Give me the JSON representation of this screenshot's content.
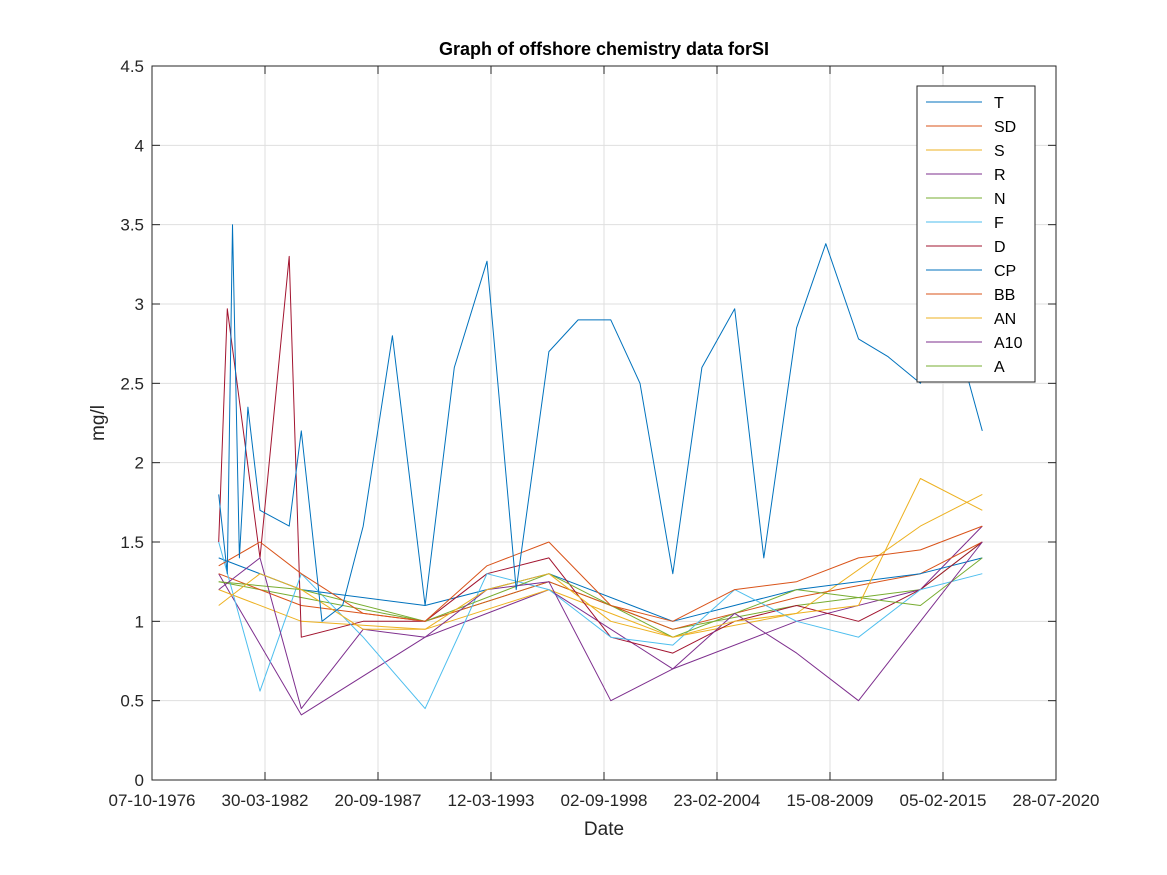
{
  "chart_data": {
    "type": "line",
    "title": "Graph of offshore chemistry data forSI",
    "xlabel": "Date",
    "ylabel": "mg/l",
    "xlim": [
      "07-10-1976",
      "28-07-2020"
    ],
    "ylim": [
      0,
      4.5
    ],
    "x_ticks": [
      "07-10-1976",
      "30-03-1982",
      "20-09-1987",
      "12-03-1993",
      "02-09-1998",
      "23-02-2004",
      "15-08-2009",
      "05-02-2015",
      "28-07-2020"
    ],
    "y_ticks": [
      "0",
      "0.5",
      "1",
      "1.5",
      "2",
      "2.5",
      "3",
      "3.5",
      "4",
      "4.5"
    ],
    "grid": true,
    "legend_position": "top-right",
    "series": [
      {
        "name": "T",
        "color": "#0072BD",
        "x": [
          "01-01-1980",
          "01-06-1980",
          "01-09-1980",
          "01-01-1981",
          "01-06-1981",
          "01-01-1982",
          "01-06-1983",
          "01-01-1984",
          "01-01-1985",
          "01-01-1986",
          "01-01-1987",
          "01-06-1988",
          "01-01-1990",
          "01-06-1991",
          "01-01-1993",
          "01-06-1994",
          "01-01-1996",
          "01-06-1997",
          "01-01-1999",
          "01-06-2000",
          "01-01-2002",
          "01-06-2003",
          "01-01-2005",
          "01-06-2006",
          "01-01-2008",
          "01-06-2009",
          "01-01-2011",
          "01-06-2012",
          "01-01-2014",
          "01-06-2015",
          "01-01-2017"
        ],
        "values": [
          1.8,
          1.3,
          3.5,
          1.4,
          2.35,
          1.7,
          1.6,
          2.2,
          1.0,
          1.1,
          1.6,
          2.8,
          1.1,
          2.6,
          3.27,
          1.2,
          2.7,
          2.9,
          2.9,
          2.5,
          1.3,
          2.6,
          2.97,
          1.4,
          2.85,
          3.38,
          2.78,
          2.67,
          2.5,
          2.95,
          2.2
        ]
      },
      {
        "name": "SD",
        "color": "#D95319",
        "x": [
          "01-01-1980",
          "01-01-1982",
          "01-01-1984",
          "01-01-1987",
          "01-01-1990",
          "01-01-1993",
          "01-01-1996",
          "01-01-1999",
          "01-01-2002",
          "01-01-2005",
          "01-01-2008",
          "01-01-2011",
          "01-01-2014",
          "01-01-2017"
        ],
        "values": [
          1.35,
          1.5,
          1.3,
          1.05,
          1.0,
          1.35,
          1.5,
          1.1,
          1.0,
          1.2,
          1.25,
          1.4,
          1.45,
          1.6
        ]
      },
      {
        "name": "S",
        "color": "#EDB120",
        "x": [
          "01-01-1980",
          "01-01-1982",
          "01-01-1984",
          "01-01-1987",
          "01-01-1990",
          "01-01-1993",
          "01-01-1996",
          "01-01-1999",
          "01-01-2002",
          "01-01-2005",
          "01-01-2008",
          "01-01-2011",
          "01-01-2014",
          "01-01-2017"
        ],
        "values": [
          1.1,
          1.3,
          1.2,
          0.95,
          0.95,
          1.2,
          1.3,
          1.0,
          0.9,
          1.0,
          1.05,
          1.1,
          1.9,
          1.7
        ]
      },
      {
        "name": "R",
        "color": "#7E2F8E",
        "x": [
          "01-01-1980",
          "01-01-1982",
          "01-01-1984",
          "01-01-1987",
          "01-01-1990",
          "01-01-1993",
          "01-01-1996",
          "01-01-1999",
          "01-01-2002",
          "01-01-2005",
          "01-01-2008",
          "01-01-2011",
          "01-01-2014",
          "01-01-2017"
        ],
        "values": [
          1.2,
          1.4,
          0.45,
          0.95,
          0.9,
          1.2,
          1.25,
          0.5,
          0.7,
          1.05,
          0.8,
          0.5,
          1.0,
          1.5
        ]
      },
      {
        "name": "N",
        "color": "#77AC30",
        "x": [
          "01-01-1980",
          "01-01-1984",
          "01-01-1990",
          "01-01-1996",
          "01-01-2002",
          "01-01-2008",
          "01-01-2014",
          "01-01-2017"
        ],
        "values": [
          1.25,
          1.2,
          1.0,
          1.3,
          0.9,
          1.2,
          1.1,
          1.4
        ]
      },
      {
        "name": "F",
        "color": "#4DBEEE",
        "x": [
          "01-01-1980",
          "01-01-1982",
          "01-01-1984",
          "01-01-1987",
          "01-01-1990",
          "01-01-1993",
          "01-01-1996",
          "01-01-1999",
          "01-01-2002",
          "01-01-2005",
          "01-01-2008",
          "01-01-2011",
          "01-01-2014",
          "01-01-2017"
        ],
        "values": [
          1.5,
          0.56,
          1.3,
          0.9,
          0.45,
          1.3,
          1.2,
          0.9,
          0.85,
          1.2,
          1.0,
          0.9,
          1.2,
          1.3
        ]
      },
      {
        "name": "D",
        "color": "#A2142F",
        "x": [
          "01-01-1980",
          "01-06-1980",
          "01-01-1982",
          "01-06-1983",
          "01-01-1984",
          "01-01-1987",
          "01-01-1990",
          "01-01-1993",
          "01-01-1996",
          "01-01-1999",
          "01-01-2002",
          "01-01-2005",
          "01-01-2008",
          "01-01-2011",
          "01-01-2014",
          "01-01-2017"
        ],
        "values": [
          1.5,
          2.97,
          1.4,
          3.3,
          0.9,
          1.0,
          1.0,
          1.3,
          1.4,
          0.9,
          0.8,
          1.0,
          1.1,
          1.0,
          1.2,
          1.5
        ]
      },
      {
        "name": "CP",
        "color": "#0072BD",
        "x": [
          "01-01-1980",
          "01-01-1984",
          "01-01-1990",
          "01-01-1996",
          "01-01-2002",
          "01-01-2008",
          "01-01-2014",
          "01-01-2017"
        ],
        "values": [
          1.4,
          1.2,
          1.1,
          1.3,
          1.0,
          1.2,
          1.3,
          1.4
        ]
      },
      {
        "name": "BB",
        "color": "#D95319",
        "x": [
          "01-01-1980",
          "01-01-1984",
          "01-01-1990",
          "01-01-1996",
          "01-01-2002",
          "01-01-2008",
          "01-01-2014",
          "01-01-2017"
        ],
        "values": [
          1.3,
          1.1,
          1.0,
          1.25,
          0.95,
          1.15,
          1.3,
          1.5
        ]
      },
      {
        "name": "AN",
        "color": "#EDB120",
        "x": [
          "01-01-1980",
          "01-01-1984",
          "01-01-1990",
          "01-01-1996",
          "01-01-2002",
          "01-01-2008",
          "01-01-2014",
          "01-01-2017"
        ],
        "values": [
          1.2,
          1.0,
          0.95,
          1.2,
          0.9,
          1.05,
          1.6,
          1.8
        ]
      },
      {
        "name": "A10",
        "color": "#7E2F8E",
        "x": [
          "01-01-1980",
          "01-01-1984",
          "01-01-1990",
          "01-01-1996",
          "01-01-2002",
          "01-01-2008",
          "01-01-2014",
          "01-01-2017"
        ],
        "values": [
          1.3,
          0.41,
          0.9,
          1.2,
          0.7,
          1.0,
          1.2,
          1.6
        ]
      },
      {
        "name": "A",
        "color": "#77AC30",
        "x": [
          "01-01-1980",
          "01-01-1984",
          "01-01-1990",
          "01-01-1996",
          "01-01-2002",
          "01-01-2008",
          "01-01-2014",
          "01-01-2017"
        ],
        "values": [
          1.25,
          1.15,
          1.0,
          1.25,
          0.95,
          1.1,
          1.2,
          1.5
        ]
      }
    ]
  }
}
